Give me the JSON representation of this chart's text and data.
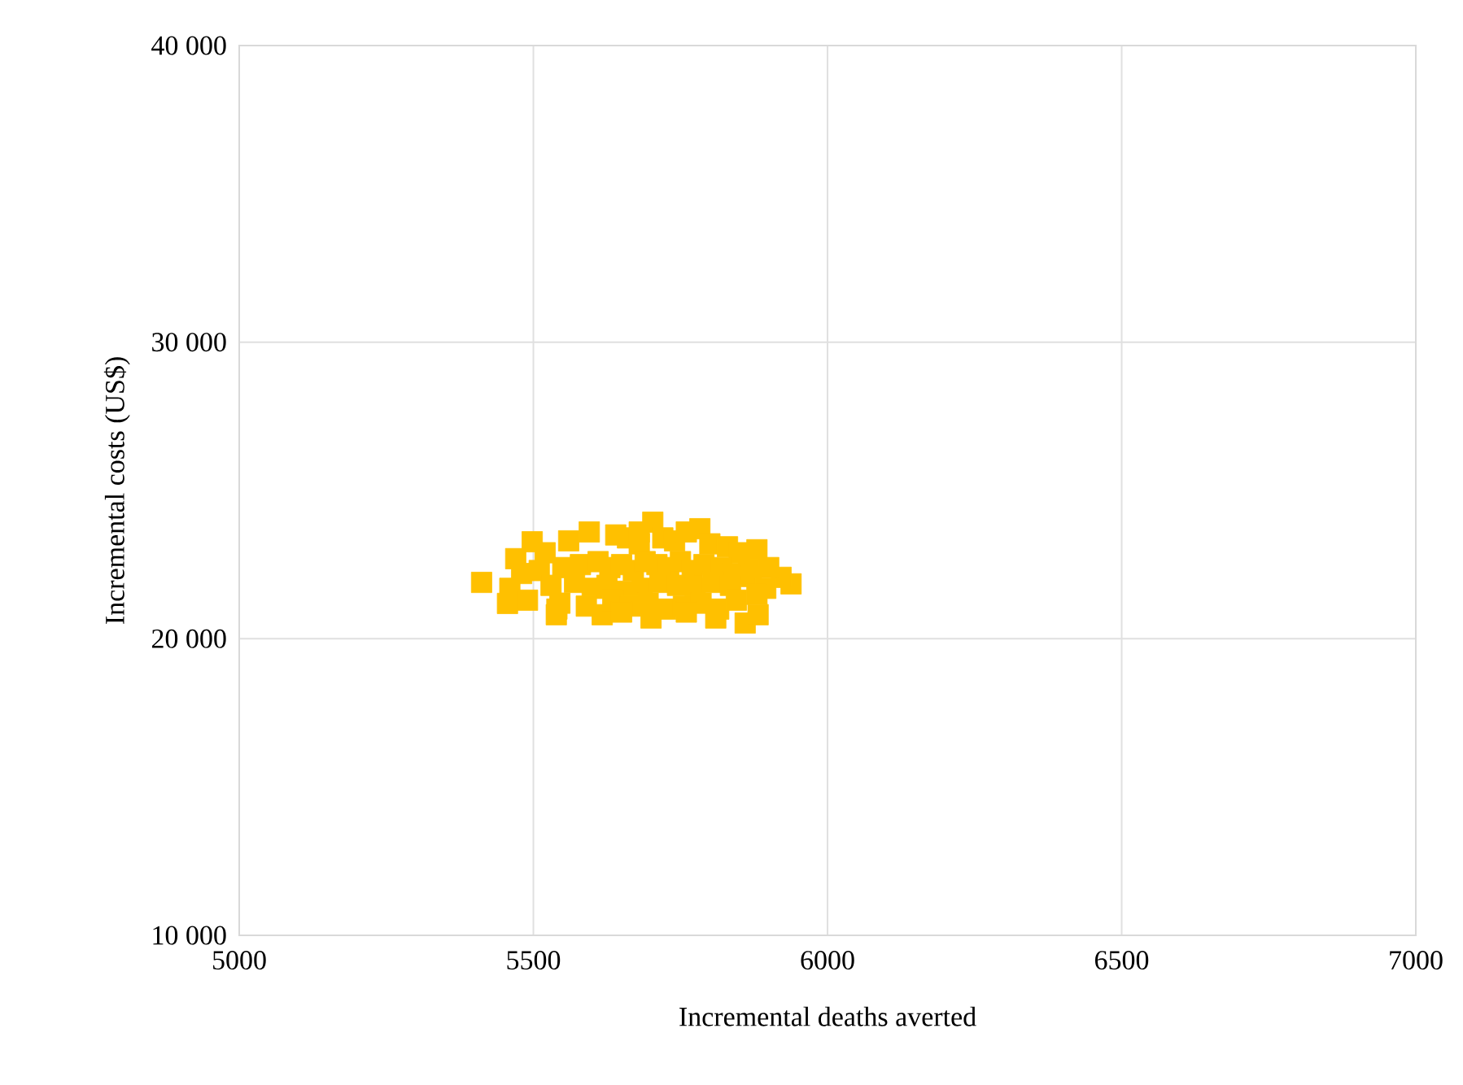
{
  "chart_data": {
    "type": "scatter",
    "xlabel": "Incremental deaths averted",
    "ylabel": "Incremental costs (US$)",
    "xlim": [
      5000,
      7000
    ],
    "xticks": [
      5000,
      5500,
      6000,
      6500,
      7000
    ],
    "ylim": [
      10000,
      40000
    ],
    "yticks": [
      {
        "value": 10000,
        "label": "10 000"
      },
      {
        "value": 20000,
        "label": "20 000"
      },
      {
        "value": 30000,
        "label": "30 000"
      },
      {
        "value": 40000,
        "label": "40 000"
      }
    ],
    "grid": true,
    "marker": "square",
    "series": [
      {
        "color": "#ffc000",
        "x": [
          5412,
          5938,
          5860,
          5703,
          5595,
          5783,
          5498,
          5456,
          5539,
          5617,
          5700,
          5810,
          5882,
          5866,
          5880,
          5921,
          5470,
          5520,
          5560,
          5640,
          5660,
          5680,
          5720,
          5740,
          5760,
          5800,
          5830,
          5850,
          5480,
          5510,
          5550,
          5580,
          5610,
          5630,
          5650,
          5670,
          5690,
          5710,
          5730,
          5750,
          5770,
          5790,
          5820,
          5840,
          5870,
          5900,
          5460,
          5530,
          5570,
          5600,
          5625,
          5655,
          5685,
          5715,
          5745,
          5775,
          5805,
          5835,
          5895,
          5490,
          5545,
          5590,
          5635,
          5665,
          5695,
          5725,
          5755,
          5785,
          5815,
          5845,
          5880,
          5650,
          5760,
          5540,
          5680
        ],
        "values": [
          21900,
          21850,
          20530,
          23930,
          23600,
          23710,
          23270,
          21190,
          20810,
          20810,
          20700,
          20700,
          20810,
          22620,
          23000,
          22070,
          22700,
          22900,
          23300,
          23500,
          23400,
          23200,
          23400,
          23300,
          23600,
          23200,
          23100,
          22900,
          22200,
          22300,
          22400,
          22500,
          22600,
          22400,
          22500,
          22300,
          22600,
          22500,
          22400,
          22600,
          22300,
          22500,
          22400,
          22200,
          22100,
          22400,
          21700,
          21800,
          21900,
          21700,
          21800,
          21600,
          21700,
          21900,
          21800,
          21700,
          21900,
          21800,
          21700,
          21300,
          21200,
          21100,
          21300,
          21100,
          21200,
          21000,
          21100,
          21200,
          21000,
          21300,
          21500,
          20900,
          20900,
          21000,
          23600
        ]
      }
    ]
  }
}
